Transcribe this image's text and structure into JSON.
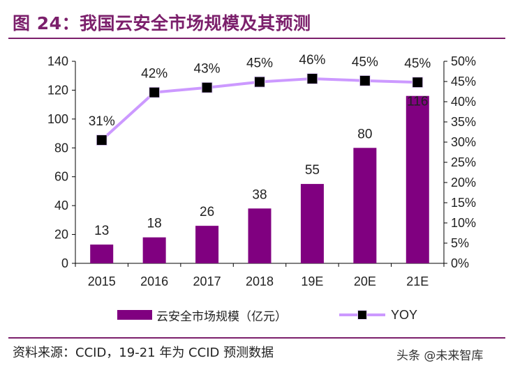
{
  "title": "图 24：我国云安全市场规模及其预测",
  "source": "资料来源：CCID，19-21 年为 CCID 预测数据",
  "watermark": "头条 @未来智库",
  "colors": {
    "bar": "#800080",
    "line": "#cc99ff",
    "marker": "#000000",
    "accent": "#7b1f6b"
  },
  "chart_data": {
    "type": "bar",
    "categories": [
      "2015",
      "2016",
      "2017",
      "2018",
      "19E",
      "20E",
      "21E"
    ],
    "series": [
      {
        "name": "云安全市场规模（亿元）",
        "type": "bar",
        "axis": "left",
        "values": [
          13,
          18,
          26,
          38,
          55,
          80,
          116
        ],
        "labels": [
          "13",
          "18",
          "26",
          "38",
          "55",
          "80",
          "116"
        ]
      },
      {
        "name": "YOY",
        "type": "line",
        "axis": "right",
        "values": [
          0.31,
          0.42,
          0.43,
          0.45,
          0.46,
          0.45,
          0.45
        ],
        "plot_values": [
          0.305,
          0.423,
          0.435,
          0.449,
          0.457,
          0.452,
          0.448
        ],
        "labels": [
          "31%",
          "42%",
          "43%",
          "45%",
          "46%",
          "45%",
          "45%"
        ]
      }
    ],
    "y_left": {
      "min": 0,
      "max": 140,
      "ticks": [
        "0",
        "20",
        "40",
        "60",
        "80",
        "100",
        "120",
        "140"
      ]
    },
    "y_right": {
      "min": 0,
      "max": 0.5,
      "ticks": [
        "0%",
        "5%",
        "10%",
        "15%",
        "20%",
        "25%",
        "30%",
        "35%",
        "40%",
        "45%",
        "50%"
      ]
    },
    "grid": false,
    "legend": "bottom"
  }
}
